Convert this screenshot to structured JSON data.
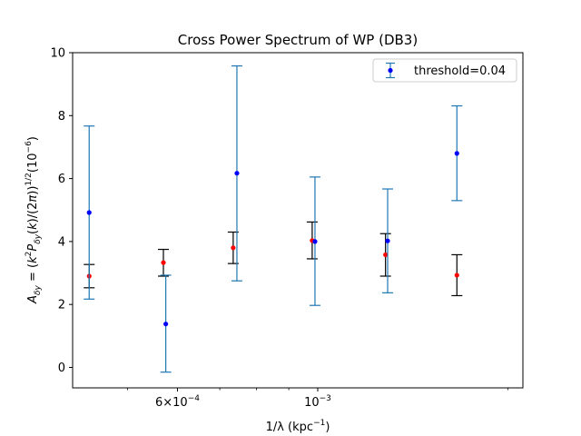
{
  "chart_data": {
    "type": "scatter",
    "title": "Cross Power Spectrum of WP (DB3)",
    "xlabel_text": "1/λ (kpc",
    "xlabel_sup": "−1",
    "xlabel_close": ")",
    "ylabel": "A_δy = (k²P_δy(k)/(2π))^{1/2} (10^{-6})",
    "x_scale": "log",
    "ylim": [
      -0.65,
      10.0
    ],
    "yticks": [
      0,
      2,
      4,
      6,
      8,
      10
    ],
    "xtick_labels": [
      {
        "value": 0.0006,
        "base": "6×10",
        "exp": "−4"
      },
      {
        "value": 0.001,
        "base": "10",
        "exp": "−3"
      }
    ],
    "grid": false,
    "legend_position": "top-right",
    "series": [
      {
        "name": "threshold=0.04",
        "color": "#0000ff",
        "errorbar_color": "#1f77b4",
        "points": [
          {
            "x": 0.000435,
            "y": 4.92,
            "lo": 2.17,
            "hi": 7.67
          },
          {
            "x": 0.000575,
            "y": 1.38,
            "lo": -0.15,
            "hi": 2.93
          },
          {
            "x": 0.000745,
            "y": 6.17,
            "lo": 2.75,
            "hi": 9.58
          },
          {
            "x": 0.00099,
            "y": 4.0,
            "lo": 1.97,
            "hi": 6.05
          },
          {
            "x": 0.00129,
            "y": 4.02,
            "lo": 2.37,
            "hi": 5.67
          },
          {
            "x": 0.00166,
            "y": 6.8,
            "lo": 5.3,
            "hi": 8.31
          }
        ]
      },
      {
        "color": "#ff0000",
        "errorbar_color": "#000000",
        "points": [
          {
            "x": 0.000435,
            "y": 2.9,
            "lo": 2.53,
            "hi": 3.27
          },
          {
            "x": 0.00057,
            "y": 3.33,
            "lo": 2.9,
            "hi": 3.75
          },
          {
            "x": 0.000735,
            "y": 3.8,
            "lo": 3.3,
            "hi": 4.3
          },
          {
            "x": 0.00098,
            "y": 4.03,
            "lo": 3.45,
            "hi": 4.62
          },
          {
            "x": 0.00128,
            "y": 3.58,
            "lo": 2.9,
            "hi": 4.25
          },
          {
            "x": 0.00166,
            "y": 2.93,
            "lo": 2.28,
            "hi": 3.58
          }
        ]
      }
    ]
  }
}
